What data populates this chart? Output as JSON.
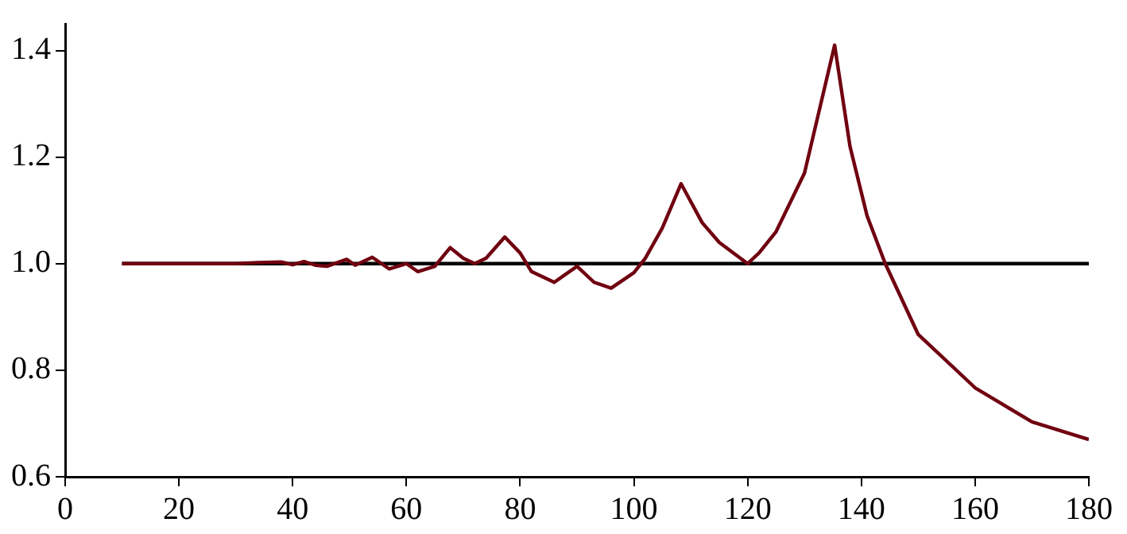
{
  "chart_data": {
    "type": "line",
    "xlim": [
      0,
      180
    ],
    "xticks": [
      0,
      20,
      40,
      60,
      80,
      100,
      120,
      140,
      160,
      180
    ],
    "ylim": [
      0.6,
      1.45
    ],
    "yticks": [
      {
        "value": 0.6,
        "label": "0.6"
      },
      {
        "value": 0.8,
        "label": "0.8"
      },
      {
        "value": 1.0,
        "label": "1.0"
      },
      {
        "value": 1.2,
        "label": "1.2"
      },
      {
        "value": 1.4,
        "label": "1.4"
      }
    ],
    "grid": false,
    "legend": false,
    "marker": "none",
    "series": [
      {
        "color": "#700010",
        "x": [
          10,
          20,
          30,
          34,
          38,
          40,
          42,
          44,
          46,
          49.5,
          51,
          54,
          57,
          60,
          62,
          65,
          67.7,
          70,
          72,
          74,
          77.3,
          80,
          82,
          86,
          90,
          93,
          96,
          100,
          102,
          105,
          108.3,
          112,
          115,
          120,
          122,
          125,
          130,
          135.3,
          138,
          141,
          144.2,
          150,
          160,
          170,
          180
        ],
        "values": [
          1,
          1,
          1,
          1.002,
          1.003,
          0.998,
          1.004,
          0.997,
          0.995,
          1.008,
          0.997,
          1.012,
          0.99,
          1,
          0.985,
          0.995,
          1.03,
          1.01,
          1,
          1.01,
          1.05,
          1.02,
          0.985,
          0.965,
          0.995,
          0.965,
          0.954,
          0.983,
          1.01,
          1.067,
          1.15,
          1.077,
          1.04,
          1,
          1.02,
          1.06,
          1.17,
          1.41,
          1.22,
          1.09,
          1,
          0.867,
          0.767,
          0.703,
          0.67
        ]
      },
      {
        "color": "#000000",
        "x": [
          10,
          180
        ],
        "values": [
          1,
          1
        ]
      }
    ]
  }
}
